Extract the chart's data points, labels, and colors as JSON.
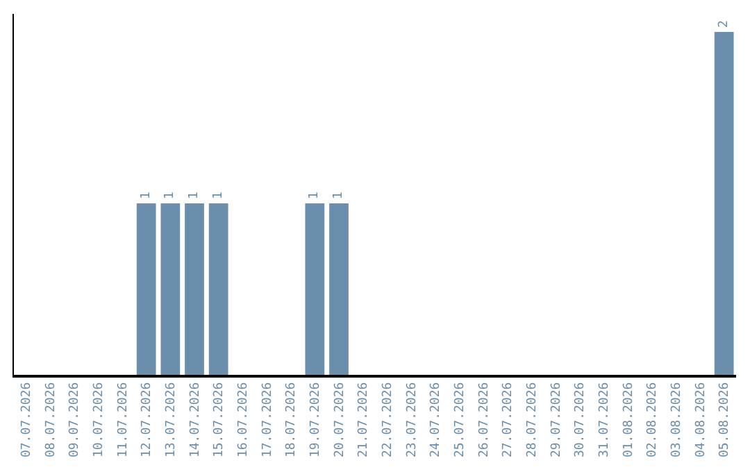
{
  "chart_data": {
    "type": "bar",
    "categories": [
      "07.07.2026",
      "08.07.2026",
      "09.07.2026",
      "10.07.2026",
      "11.07.2026",
      "12.07.2026",
      "13.07.2026",
      "14.07.2026",
      "15.07.2026",
      "16.07.2026",
      "17.07.2026",
      "18.07.2026",
      "19.07.2026",
      "20.07.2026",
      "21.07.2026",
      "22.07.2026",
      "23.07.2026",
      "24.07.2026",
      "25.07.2026",
      "26.07.2026",
      "27.07.2026",
      "28.07.2026",
      "29.07.2026",
      "30.07.2026",
      "31.07.2026",
      "01.08.2026",
      "02.08.2026",
      "03.08.2026",
      "04.08.2026",
      "05.08.2026"
    ],
    "values": [
      0,
      0,
      0,
      0,
      0,
      1,
      1,
      1,
      1,
      0,
      0,
      0,
      1,
      1,
      0,
      0,
      0,
      0,
      0,
      0,
      0,
      0,
      0,
      0,
      0,
      0,
      0,
      0,
      0,
      2
    ],
    "value_labels": [
      null,
      null,
      null,
      null,
      null,
      "1",
      "1",
      "1",
      "1",
      null,
      null,
      null,
      "1",
      "1",
      null,
      null,
      null,
      null,
      null,
      null,
      null,
      null,
      null,
      null,
      null,
      null,
      null,
      null,
      null,
      "2"
    ],
    "color": "#6c8ead",
    "tick_labels": "x"
  }
}
